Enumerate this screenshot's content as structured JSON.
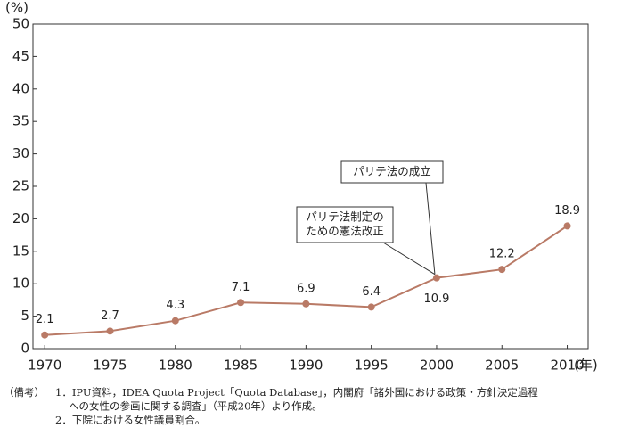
{
  "chart_data": {
    "type": "line",
    "y_unit": "(%)",
    "x_unit": "(年)",
    "x": [
      1970,
      1975,
      1980,
      1985,
      1990,
      1995,
      2000,
      2005,
      2010
    ],
    "series": [
      {
        "color": "#b97a66",
        "values": [
          2.1,
          2.7,
          4.3,
          7.1,
          6.9,
          6.4,
          10.9,
          12.2,
          18.9
        ],
        "value_labels": [
          "2.1",
          "2.7",
          "4.3",
          "7.1",
          "6.9",
          "6.4",
          "10.9",
          "12.2",
          "18.9"
        ]
      }
    ],
    "xlim": [
      1969.1,
      2011.6
    ],
    "xticks": [
      1970,
      1975,
      1980,
      1985,
      1990,
      1995,
      2000,
      2005,
      2010
    ],
    "ylim": [
      0,
      50
    ],
    "yticks": [
      0,
      5,
      10,
      15,
      20,
      25,
      30,
      35,
      40,
      45,
      50
    ],
    "annotations": [
      {
        "lines": [
          "パリテ法の成立"
        ]
      },
      {
        "lines": [
          "パリテ法制定の",
          "ための憲法改正"
        ]
      }
    ],
    "notes": {
      "head": "（備考）",
      "lines": [
        "1．IPU資料，IDEA Quota Project「Quota Database」，内閣府「諸外国における政策・方針決定過程",
        "への女性の参画に関する調査」（平成20年）より作成。",
        "2．下院における女性議員割合。"
      ]
    }
  }
}
